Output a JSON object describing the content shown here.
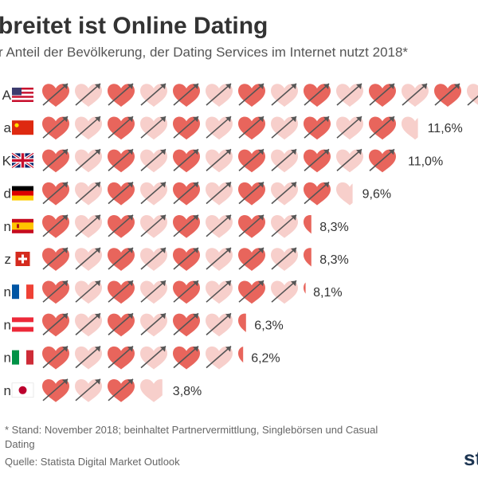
{
  "title": "breitet ist Online Dating",
  "subtitle": "r Anteil der Bevölkerung, der Dating Services im Internet nutzt 2018*",
  "chart_data": {
    "type": "bar",
    "categories": [
      "A",
      "a",
      "K",
      "d",
      "n",
      "z",
      "n",
      "n",
      "n",
      "n"
    ],
    "values": [
      null,
      11.6,
      11.0,
      9.6,
      8.3,
      8.3,
      8.1,
      6.3,
      6.2,
      3.8
    ],
    "value_labels": [
      "",
      "11,6%",
      "11,0%",
      "9,6%",
      "8,3%",
      "8,3%",
      "8,1%",
      "6,3%",
      "6,2%",
      "3,8%"
    ],
    "flags": [
      "usa",
      "china",
      "uk",
      "germany",
      "spain",
      "switzerland",
      "france",
      "austria",
      "italy",
      "japan"
    ],
    "unit_per_heart": 1,
    "colors": {
      "heart_dark": "#e8655c",
      "heart_light": "#f7cfcb",
      "arrow": "#555555"
    }
  },
  "footnote": "* Stand: November 2018; beinhaltet Partnervermittlung, Singlebörsen und Casual Dating",
  "source": "Quelle: Statista Digital Market Outlook",
  "logo": "st"
}
